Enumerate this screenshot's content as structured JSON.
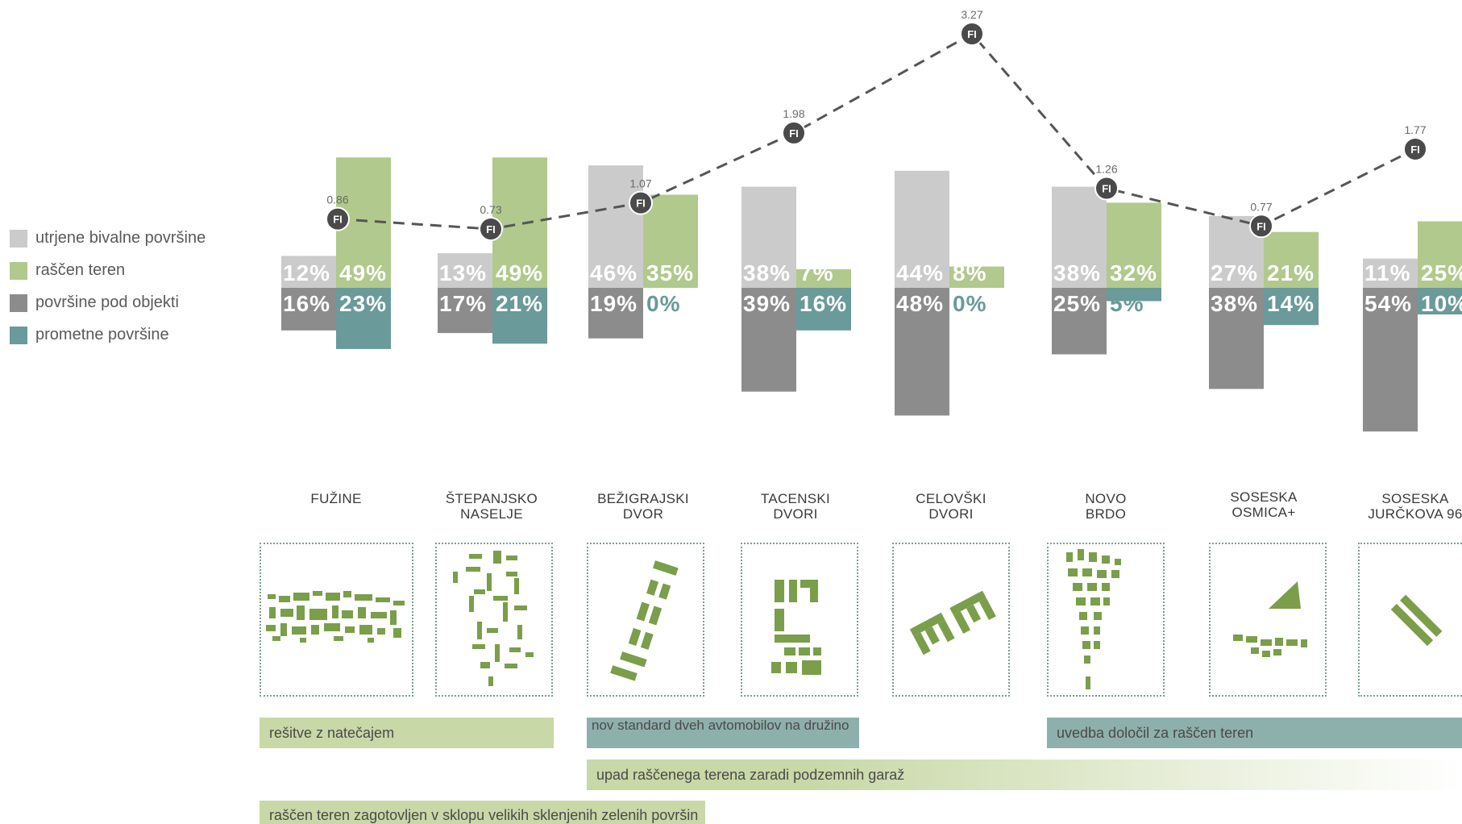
{
  "legend": {
    "items": [
      {
        "label": "utrjene bivalne površine",
        "color": "#cbcbcb"
      },
      {
        "label": "raščen teren",
        "color": "#b1c98c"
      },
      {
        "label": "površine pod objekti",
        "color": "#8c8c8c"
      },
      {
        "label": "prometne površine",
        "color": "#6a9a9a"
      }
    ]
  },
  "chart_data": {
    "type": "bar",
    "categories": [
      "FUŽINE",
      "ŠTEPANJSKO NASELJE",
      "BEŽIGRAJSKI DVOR",
      "TACENSKI DVORI",
      "CELOVŠKI DVORI",
      "NOVO BRDO",
      "SOSESKA OSMICA+",
      "SOSESKA JURČKOVA 96"
    ],
    "series": [
      {
        "name": "utrjene bivalne površine",
        "color": "#cbcbcb",
        "values": [
          12,
          13,
          46,
          38,
          44,
          38,
          27,
          11
        ]
      },
      {
        "name": "raščen teren",
        "color": "#b1c98c",
        "values": [
          49,
          49,
          35,
          7,
          8,
          32,
          21,
          25
        ]
      },
      {
        "name": "površine pod objekti",
        "color": "#8c8c8c",
        "values": [
          16,
          17,
          19,
          39,
          48,
          25,
          38,
          54
        ]
      },
      {
        "name": "prometne površine",
        "color": "#6a9a9a",
        "values": [
          23,
          21,
          0,
          16,
          0,
          5,
          14,
          10
        ]
      }
    ],
    "percent_labels": {
      "utrjene": [
        "12%",
        "13%",
        "46%",
        "38%",
        "44%",
        "38%",
        "27%",
        "11%"
      ],
      "rascen": [
        "49%",
        "49%",
        "35%",
        "7%",
        "8%",
        "32%",
        "21%",
        "25%"
      ],
      "objekti": [
        "16%",
        "17%",
        "19%",
        "39%",
        "48%",
        "25%",
        "38%",
        "54%"
      ],
      "prometne": [
        "23%",
        "21%",
        "0%",
        "16%",
        "0%",
        "5%",
        "14%",
        "10%"
      ]
    },
    "fi": {
      "marker": "FI",
      "values": [
        0.86,
        0.73,
        1.07,
        1.98,
        3.27,
        1.26,
        0.77,
        1.77
      ],
      "labels": [
        "0.86",
        "0.73",
        "1.07",
        "1.98",
        "3.27",
        "1.26",
        "0.77",
        "1.77"
      ]
    }
  },
  "names": [
    "FUŽINE",
    "ŠTEPANJSKO\nNASELJE",
    "BEŽIGRAJSKI\nDVOR",
    "TACENSKI\nDVORI",
    "CELOVŠKI\nDVORI",
    "NOVO\nBRDO",
    "SOSESKA\nOSMICA+",
    "SOSESKA\nJURČKOVA 96"
  ],
  "bands": [
    {
      "label": "rešitve z natečajem",
      "color": "#c8d8a6"
    },
    {
      "label": "nov standard dveh avtomobilov na družino",
      "color": "#8eb0ac"
    },
    {
      "label": "uvedba določil za raščen teren",
      "color": "#8eb0ac"
    },
    {
      "label": "upad raščenega terena zaradi podzemnih garaž",
      "color": "#c8d8a6"
    },
    {
      "label": "raščen teren zagotovljen v sklopu velikih sklenjenih zelenih površin",
      "color": "#c8d8a6"
    }
  ],
  "map_color": "#7a9e4a"
}
